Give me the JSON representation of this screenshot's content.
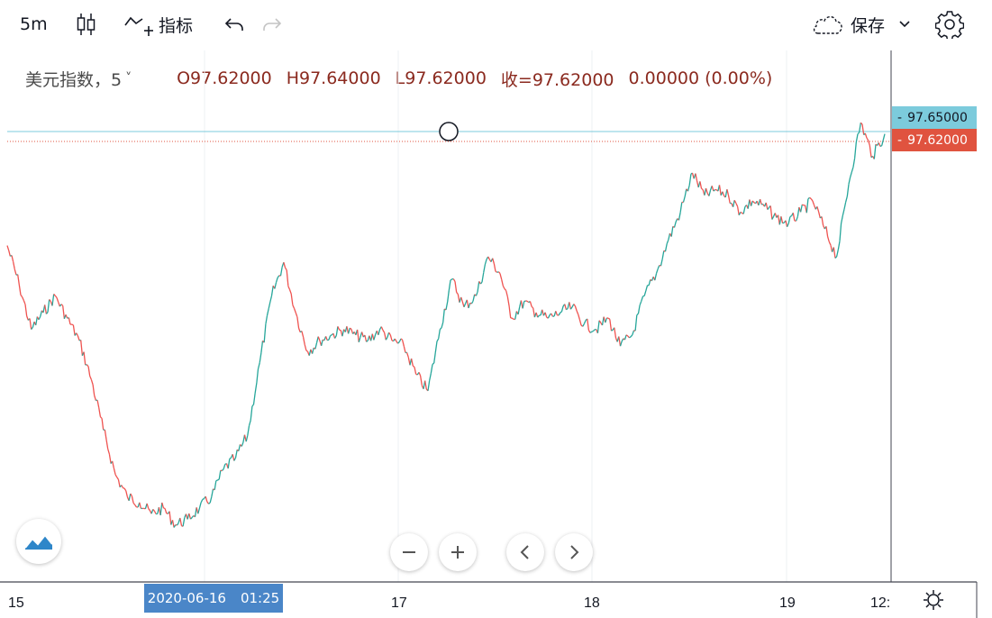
{
  "toolbar": {
    "interval": "5m",
    "indicators_label": "指标",
    "save_label": "保存"
  },
  "legend": {
    "symbol": "美元指数，5",
    "open": "O97.62000",
    "high": "H97.64000",
    "low": "L97.62000",
    "close": "收=97.62000",
    "change": "0.00000 (0.00%)"
  },
  "price_labels": {
    "high_line": "97.65000",
    "last_price": "97.62000"
  },
  "time_axis": {
    "labels": [
      "15",
      "17",
      "18",
      "19",
      "12:"
    ],
    "cursor_date": "2020-06-16",
    "cursor_time": "01:25"
  },
  "colors": {
    "up": "#26a69a",
    "down": "#ef5350",
    "high_line": "#7ccbdc",
    "last_price": "#e0533f",
    "cursor_label": "#4a86c8"
  },
  "chart_data": {
    "type": "line",
    "title": "美元指数，5",
    "x_labels": [
      "15",
      "17",
      "18",
      "19",
      "12:"
    ],
    "series": [
      {
        "values": [
          97.42,
          97.35,
          97.27,
          97.3,
          97.33,
          97.29,
          97.25,
          97.18,
          97.09,
          97.01,
          96.97,
          96.96,
          96.94,
          96.95,
          96.92,
          96.93,
          96.95,
          96.97,
          97.02,
          97.04,
          97.08,
          97.21,
          97.33,
          97.39,
          97.3,
          97.23,
          97.25,
          97.26,
          97.27,
          97.26,
          97.25,
          97.27,
          97.25,
          97.24,
          97.19,
          97.16,
          97.27,
          97.36,
          97.31,
          97.33,
          97.4,
          97.37,
          97.29,
          97.32,
          97.3,
          97.29,
          97.3,
          97.31,
          97.28,
          97.27,
          97.29,
          97.24,
          97.26,
          97.33,
          97.37,
          97.43,
          97.48,
          97.55,
          97.51,
          97.52,
          97.51,
          97.48,
          97.5,
          97.49,
          97.47,
          97.46,
          97.48,
          97.5,
          97.45,
          97.4,
          97.53,
          97.64,
          97.58,
          97.62
        ]
      }
    ]
  }
}
